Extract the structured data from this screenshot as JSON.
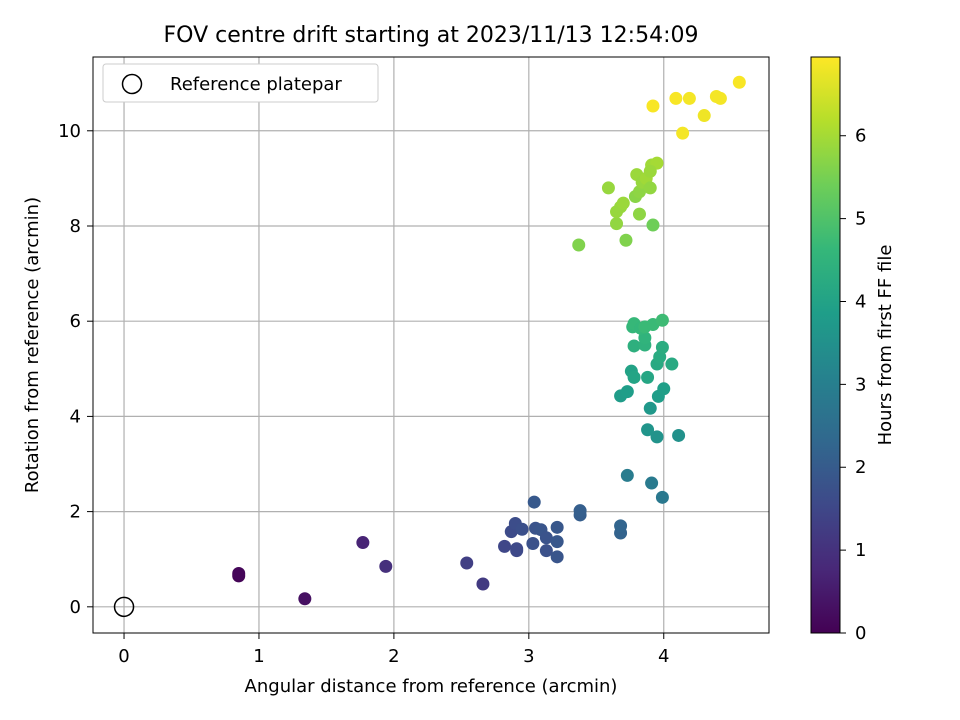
{
  "chart_data": {
    "type": "scatter",
    "title": "FOV centre drift starting at 2023/11/13 12:54:09",
    "xlabel": "Angular distance from reference (arcmin)",
    "ylabel": "Rotation from reference (arcmin)",
    "xlim": [
      -0.23,
      4.78
    ],
    "ylim": [
      -0.55,
      11.55
    ],
    "xticks": [
      0,
      1,
      2,
      3,
      4
    ],
    "yticks": [
      0,
      2,
      4,
      6,
      8,
      10
    ],
    "grid": true,
    "legend": {
      "position": "top-left",
      "entries": [
        "Reference platepar"
      ]
    },
    "reference_point": {
      "label": "Reference platepar",
      "x": 0,
      "y": 0,
      "marker": "open-circle",
      "color": "#000000"
    },
    "colorbar": {
      "label": "Hours from first FF file",
      "range": [
        0,
        6.95
      ],
      "ticks": [
        0,
        1,
        2,
        3,
        4,
        5,
        6
      ],
      "colormap": "viridis",
      "stops": [
        "#440154",
        "#482878",
        "#3e4989",
        "#31688e",
        "#26828e",
        "#1f9e89",
        "#35b779",
        "#6ece58",
        "#b5de2b",
        "#fde725"
      ]
    },
    "series": [
      {
        "points": [
          {
            "x": 0.85,
            "y": 0.65,
            "c": 0.05
          },
          {
            "x": 0.85,
            "y": 0.7,
            "c": 0.1
          },
          {
            "x": 1.34,
            "y": 0.17,
            "c": 0.3
          },
          {
            "x": 1.77,
            "y": 1.35,
            "c": 0.7
          },
          {
            "x": 1.94,
            "y": 0.85,
            "c": 0.95
          },
          {
            "x": 2.54,
            "y": 0.92,
            "c": 1.3
          },
          {
            "x": 2.66,
            "y": 0.48,
            "c": 1.2
          },
          {
            "x": 2.82,
            "y": 1.27,
            "c": 1.5
          },
          {
            "x": 2.87,
            "y": 1.58,
            "c": 1.6
          },
          {
            "x": 2.9,
            "y": 1.75,
            "c": 1.65
          },
          {
            "x": 2.91,
            "y": 1.18,
            "c": 1.55
          },
          {
            "x": 2.91,
            "y": 1.22,
            "c": 1.55
          },
          {
            "x": 2.95,
            "y": 1.63,
            "c": 1.7
          },
          {
            "x": 3.03,
            "y": 1.33,
            "c": 1.75
          },
          {
            "x": 3.05,
            "y": 1.65,
            "c": 1.8
          },
          {
            "x": 3.04,
            "y": 2.2,
            "c": 1.95
          },
          {
            "x": 3.09,
            "y": 1.62,
            "c": 1.85
          },
          {
            "x": 3.13,
            "y": 1.45,
            "c": 1.8
          },
          {
            "x": 3.13,
            "y": 1.18,
            "c": 1.75
          },
          {
            "x": 3.21,
            "y": 1.05,
            "c": 1.85
          },
          {
            "x": 3.21,
            "y": 1.37,
            "c": 1.9
          },
          {
            "x": 3.21,
            "y": 1.67,
            "c": 1.9
          },
          {
            "x": 3.38,
            "y": 1.93,
            "c": 2.05
          },
          {
            "x": 3.38,
            "y": 2.02,
            "c": 2.1
          },
          {
            "x": 3.68,
            "y": 1.55,
            "c": 2.2
          },
          {
            "x": 3.68,
            "y": 1.7,
            "c": 2.25
          },
          {
            "x": 3.73,
            "y": 2.76,
            "c": 2.9
          },
          {
            "x": 3.91,
            "y": 2.6,
            "c": 2.85
          },
          {
            "x": 3.99,
            "y": 2.3,
            "c": 2.8
          },
          {
            "x": 3.88,
            "y": 3.72,
            "c": 3.6
          },
          {
            "x": 3.95,
            "y": 3.57,
            "c": 3.55
          },
          {
            "x": 4.11,
            "y": 3.6,
            "c": 3.5
          },
          {
            "x": 3.9,
            "y": 4.17,
            "c": 3.7
          },
          {
            "x": 3.68,
            "y": 4.43,
            "c": 3.8
          },
          {
            "x": 3.73,
            "y": 4.52,
            "c": 3.85
          },
          {
            "x": 3.96,
            "y": 4.42,
            "c": 3.85
          },
          {
            "x": 4.0,
            "y": 4.58,
            "c": 3.9
          },
          {
            "x": 3.76,
            "y": 4.95,
            "c": 4.0
          },
          {
            "x": 3.78,
            "y": 4.82,
            "c": 4.05
          },
          {
            "x": 3.88,
            "y": 4.82,
            "c": 4.1
          },
          {
            "x": 3.95,
            "y": 5.1,
            "c": 4.2
          },
          {
            "x": 3.97,
            "y": 5.25,
            "c": 4.25
          },
          {
            "x": 3.99,
            "y": 5.45,
            "c": 4.3
          },
          {
            "x": 4.06,
            "y": 5.1,
            "c": 4.2
          },
          {
            "x": 3.78,
            "y": 5.48,
            "c": 4.4
          },
          {
            "x": 3.86,
            "y": 5.5,
            "c": 4.45
          },
          {
            "x": 3.86,
            "y": 5.65,
            "c": 4.5
          },
          {
            "x": 3.77,
            "y": 5.88,
            "c": 4.6
          },
          {
            "x": 3.78,
            "y": 5.95,
            "c": 4.65
          },
          {
            "x": 3.83,
            "y": 5.85,
            "c": 4.6
          },
          {
            "x": 3.86,
            "y": 5.88,
            "c": 4.7
          },
          {
            "x": 3.92,
            "y": 5.93,
            "c": 4.7
          },
          {
            "x": 3.99,
            "y": 6.02,
            "c": 4.75
          },
          {
            "x": 3.37,
            "y": 7.6,
            "c": 5.6
          },
          {
            "x": 3.72,
            "y": 7.7,
            "c": 5.6
          },
          {
            "x": 3.92,
            "y": 8.02,
            "c": 5.4
          },
          {
            "x": 3.82,
            "y": 8.25,
            "c": 5.75
          },
          {
            "x": 3.65,
            "y": 8.05,
            "c": 5.8
          },
          {
            "x": 3.65,
            "y": 8.3,
            "c": 5.85
          },
          {
            "x": 3.68,
            "y": 8.4,
            "c": 5.85
          },
          {
            "x": 3.7,
            "y": 8.48,
            "c": 5.9
          },
          {
            "x": 3.59,
            "y": 8.8,
            "c": 5.85
          },
          {
            "x": 3.79,
            "y": 8.62,
            "c": 5.7
          },
          {
            "x": 3.82,
            "y": 8.72,
            "c": 5.75
          },
          {
            "x": 3.8,
            "y": 9.08,
            "c": 5.9
          },
          {
            "x": 3.84,
            "y": 8.92,
            "c": 5.85
          },
          {
            "x": 3.87,
            "y": 9.0,
            "c": 5.95
          },
          {
            "x": 3.9,
            "y": 8.8,
            "c": 5.8
          },
          {
            "x": 3.91,
            "y": 9.28,
            "c": 5.95
          },
          {
            "x": 3.95,
            "y": 9.32,
            "c": 6.0
          },
          {
            "x": 3.9,
            "y": 9.15,
            "c": 5.9
          },
          {
            "x": 3.92,
            "y": 10.52,
            "c": 6.9
          },
          {
            "x": 4.09,
            "y": 10.68,
            "c": 6.9
          },
          {
            "x": 4.19,
            "y": 10.68,
            "c": 6.85
          },
          {
            "x": 4.14,
            "y": 9.95,
            "c": 6.85
          },
          {
            "x": 4.3,
            "y": 10.32,
            "c": 6.8
          },
          {
            "x": 4.39,
            "y": 10.72,
            "c": 6.85
          },
          {
            "x": 4.42,
            "y": 10.68,
            "c": 6.85
          },
          {
            "x": 4.56,
            "y": 11.02,
            "c": 6.9
          }
        ]
      }
    ]
  }
}
